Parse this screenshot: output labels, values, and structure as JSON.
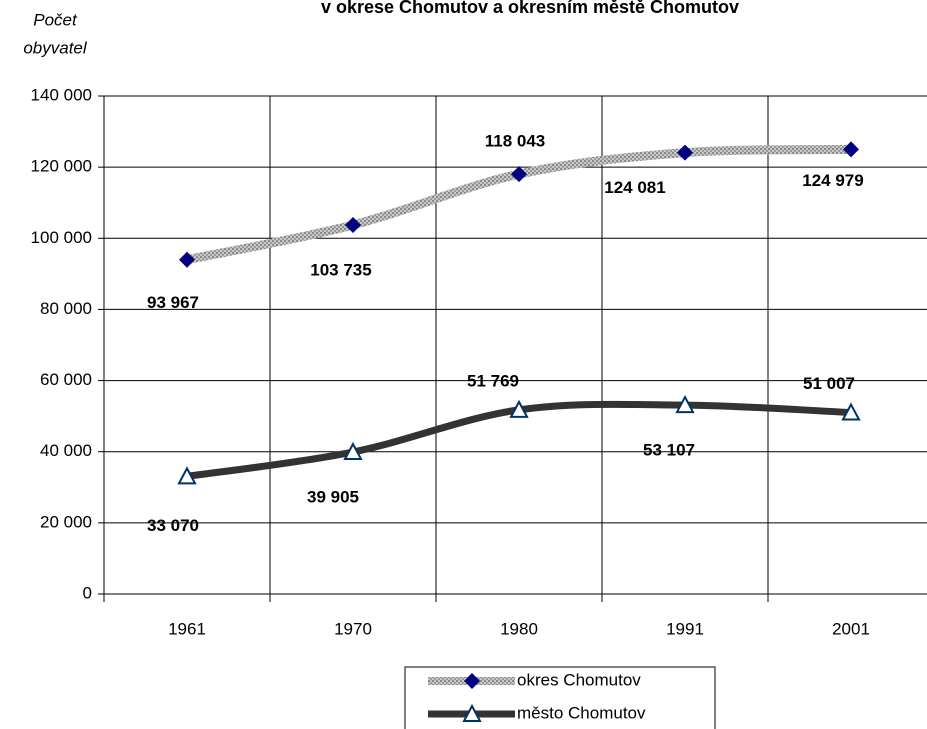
{
  "chart_data": {
    "type": "line",
    "title": "v okrese  Chomutov a okresním městě Chomutov",
    "y_label": [
      "Počet",
      "obyvatel"
    ],
    "categories": [
      "1961",
      "1970",
      "1980",
      "1991",
      "2001"
    ],
    "series": [
      {
        "name": "okres Chomutov",
        "color": "#a8a8a8",
        "marker_color": "#000080",
        "marker": "diamond",
        "values": [
          93967,
          103735,
          118043,
          124081,
          124979
        ],
        "value_labels": [
          "93 967",
          "103 735",
          "118 043",
          "124 081",
          "124 979"
        ]
      },
      {
        "name": "město Chomutov",
        "color": "#333333",
        "marker_color": "#003366",
        "marker": "triangle",
        "values": [
          33070,
          39905,
          51769,
          53107,
          51007
        ],
        "value_labels": [
          "33 070",
          "39 905",
          "51 769",
          "53 107",
          "51 007"
        ]
      }
    ],
    "ylim": [
      0,
      140000
    ],
    "yticks": [
      0,
      {
        "value": 20000,
        "label": "20 000"
      },
      {
        "value": 40000,
        "label": "40 000"
      },
      {
        "value": 60000,
        "label": "60 000"
      },
      {
        "value": 80000,
        "label": "80 000"
      },
      {
        "value": 100000,
        "label": "100 000"
      },
      {
        "value": 120000,
        "label": "120 000"
      },
      {
        "value": 140000,
        "label": "140 000"
      }
    ],
    "grid": true
  }
}
